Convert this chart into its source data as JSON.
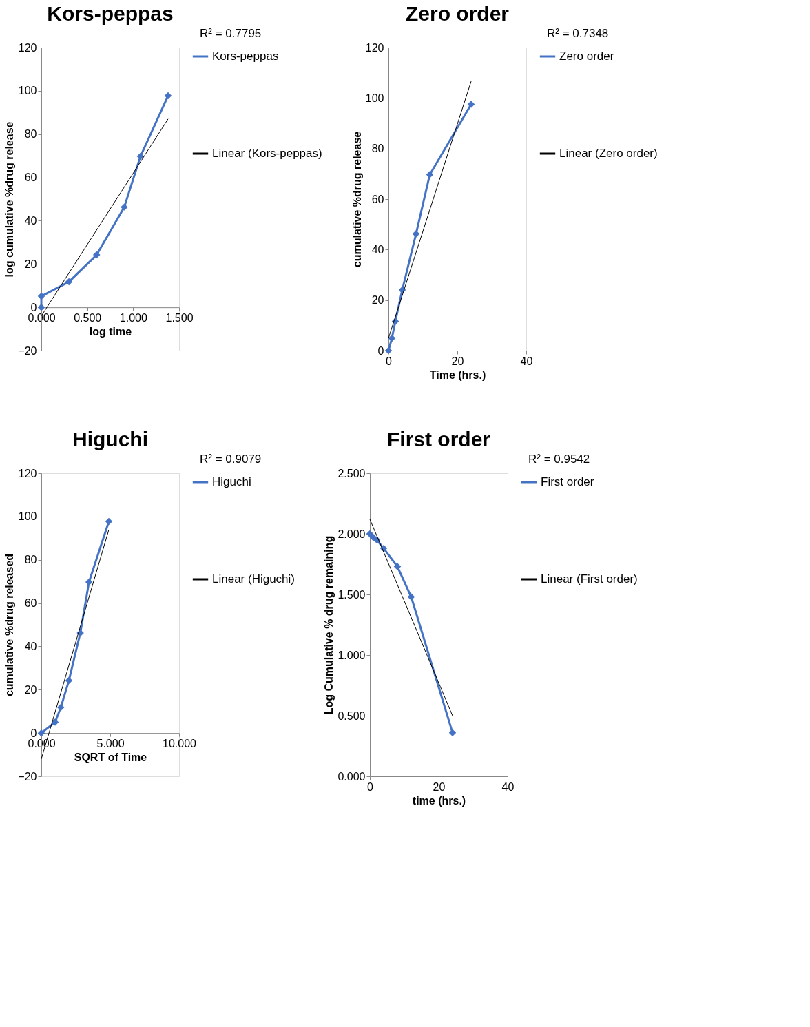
{
  "chart_data": [
    {
      "type": "line",
      "title": "Kors-peppas",
      "xlabel": "log time",
      "ylabel": "log cumulative %drug release",
      "x": [
        0,
        0,
        0.301,
        0.602,
        0.903,
        1.079,
        1.38
      ],
      "xlim": [
        0,
        1.5
      ],
      "xticks": [
        {
          "value": 0,
          "label": "0.000"
        },
        {
          "value": 0.5,
          "label": "0.500"
        },
        {
          "value": 1,
          "label": "1.000"
        },
        {
          "value": 1.5,
          "label": "1.500"
        }
      ],
      "ylim": [
        -20,
        120
      ],
      "yticks": [
        -20,
        0,
        20,
        40,
        60,
        80,
        100,
        120
      ],
      "grid": false,
      "legend": "right",
      "marker": "diamond",
      "annotations": [
        "R² = 0.7795"
      ],
      "series": [
        {
          "name": "Kors-peppas",
          "color": "#4472c4",
          "values": [
            0,
            5.1,
            11.8,
            24.2,
            46.3,
            69.7,
            97.7
          ]
        },
        {
          "name": "Linear (Kors-peppas)",
          "type": "line",
          "marker": "none",
          "color": "#000000",
          "x": [
            0,
            1.38
          ],
          "values": [
            -4,
            87
          ]
        }
      ]
    },
    {
      "type": "line",
      "title": "Zero order",
      "xlabel": "Time (hrs.)",
      "ylabel": "cumulative %drug release",
      "x": [
        0,
        1,
        2,
        4,
        8,
        12,
        24
      ],
      "xlim": [
        0,
        40
      ],
      "xticks": [
        0,
        20,
        40
      ],
      "ylim": [
        0,
        120
      ],
      "yticks": [
        0,
        20,
        40,
        60,
        80,
        100,
        120
      ],
      "grid": false,
      "legend": "right",
      "marker": "diamond",
      "annotations": [
        "R² = 0.7348"
      ],
      "series": [
        {
          "name": "Zero order",
          "color": "#4472c4",
          "values": [
            0,
            4.9,
            11.6,
            24,
            46.2,
            69.7,
            97.5
          ]
        },
        {
          "name": "Linear (Zero order)",
          "type": "line",
          "marker": "none",
          "color": "#000000",
          "x": [
            0,
            24
          ],
          "values": [
            4.9,
            106.6
          ]
        }
      ]
    },
    {
      "type": "line",
      "title": "Higuchi",
      "xlabel": "SQRT of Time",
      "ylabel": "cumulative %drug released",
      "x": [
        0,
        1,
        1.414,
        2,
        2.83,
        3.46,
        4.9
      ],
      "xlim": [
        0,
        10
      ],
      "xticks": [
        {
          "value": 0,
          "label": "0.000"
        },
        {
          "value": 5,
          "label": "5.000"
        },
        {
          "value": 10,
          "label": "10.000"
        }
      ],
      "ylim": [
        -20,
        120
      ],
      "yticks": [
        -20,
        0,
        20,
        40,
        60,
        80,
        100,
        120
      ],
      "grid": false,
      "legend": "right",
      "marker": "diamond",
      "annotations": [
        "R² = 0.9079"
      ],
      "series": [
        {
          "name": "Higuchi",
          "color": "#4472c4",
          "values": [
            0,
            5,
            11.8,
            24.2,
            46.2,
            69.7,
            97.7
          ]
        },
        {
          "name": "Linear (Higuchi)",
          "type": "line",
          "marker": "none",
          "color": "#000000",
          "x": [
            0,
            4.9
          ],
          "values": [
            -12,
            93.9
          ]
        }
      ]
    },
    {
      "type": "line",
      "title": "First order",
      "xlabel": "time (hrs.)",
      "ylabel": "Log Cumulative % drug remaining",
      "x": [
        0,
        1,
        2,
        4,
        8,
        12,
        24
      ],
      "xlim": [
        0,
        40
      ],
      "xticks": [
        0,
        20,
        40
      ],
      "ylim": [
        0,
        2.5
      ],
      "yticks": [
        {
          "value": 0,
          "label": "0.000"
        },
        {
          "value": 0.5,
          "label": "0.500"
        },
        {
          "value": 1,
          "label": "1.000"
        },
        {
          "value": 1.5,
          "label": "1.500"
        },
        {
          "value": 2,
          "label": "2.000"
        },
        {
          "value": 2.5,
          "label": "2.500"
        }
      ],
      "grid": false,
      "legend": "right",
      "marker": "diamond",
      "annotations": [
        "R² = 0.9542"
      ],
      "series": [
        {
          "name": "First order",
          "color": "#4472c4",
          "values": [
            2.0,
            1.97,
            1.95,
            1.88,
            1.73,
            1.48,
            0.36
          ]
        },
        {
          "name": "Linear (First order)",
          "type": "line",
          "marker": "none",
          "color": "#000000",
          "x": [
            0,
            24
          ],
          "values": [
            2.12,
            0.5
          ]
        }
      ]
    }
  ]
}
